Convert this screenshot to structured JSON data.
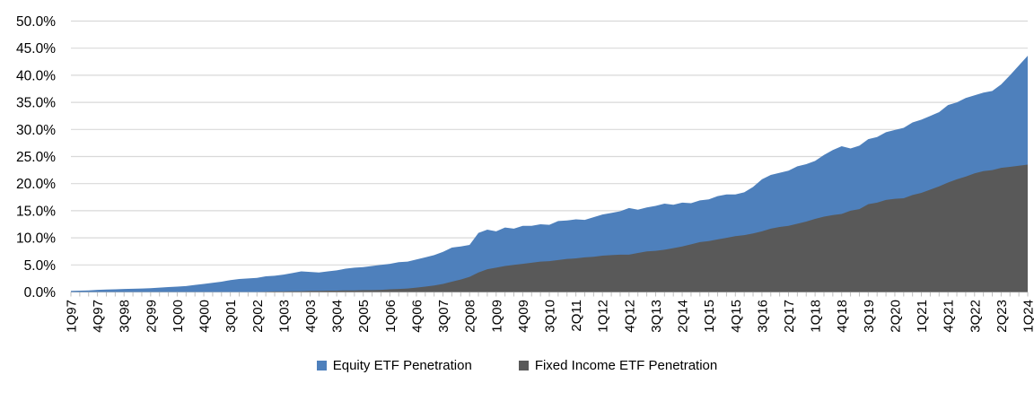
{
  "chart_data": {
    "type": "area",
    "title": "",
    "grid": true,
    "legend_position": "bottom",
    "overlap_mode": "overlaid-not-stacked",
    "y_axis": {
      "min": 0,
      "max": 50,
      "step": 5,
      "tick_labels": [
        "0.0%",
        "5.0%",
        "10.0%",
        "15.0%",
        "20.0%",
        "25.0%",
        "30.0%",
        "35.0%",
        "40.0%",
        "45.0%",
        "50.0%"
      ]
    },
    "x_axis": {
      "points": 109,
      "first_point": "1Q97",
      "last_point": "1Q24",
      "label_every_n_points": 3,
      "tick_labels": [
        "1Q97",
        "4Q97",
        "3Q98",
        "2Q99",
        "1Q00",
        "4Q00",
        "3Q01",
        "2Q02",
        "1Q03",
        "4Q03",
        "3Q04",
        "2Q05",
        "1Q06",
        "4Q06",
        "3Q07",
        "2Q08",
        "1Q09",
        "4Q09",
        "3Q10",
        "2Q11",
        "1Q12",
        "4Q12",
        "3Q13",
        "2Q14",
        "1Q15",
        "4Q15",
        "3Q16",
        "2Q17",
        "1Q18",
        "4Q18",
        "3Q19",
        "2Q20",
        "1Q21",
        "4Q21",
        "3Q22",
        "2Q23",
        "1Q24"
      ]
    },
    "series": [
      {
        "name": "Equity ETF Penetration",
        "color": "#4E80BC",
        "values": [
          0.2,
          0.25,
          0.3,
          0.4,
          0.45,
          0.5,
          0.55,
          0.6,
          0.65,
          0.7,
          0.8,
          0.9,
          1.0,
          1.1,
          1.3,
          1.5,
          1.7,
          1.9,
          2.2,
          2.4,
          2.5,
          2.6,
          2.9,
          3.0,
          3.2,
          3.5,
          3.8,
          3.7,
          3.6,
          3.8,
          4.0,
          4.3,
          4.5,
          4.6,
          4.8,
          5.0,
          5.2,
          5.5,
          5.6,
          6.0,
          6.4,
          6.8,
          7.4,
          8.2,
          8.4,
          8.7,
          10.9,
          11.5,
          11.2,
          11.9,
          11.7,
          12.2,
          12.2,
          12.5,
          12.4,
          13.1,
          13.2,
          13.4,
          13.3,
          13.8,
          14.3,
          14.6,
          14.9,
          15.5,
          15.2,
          15.6,
          15.9,
          16.3,
          16.1,
          16.5,
          16.4,
          16.9,
          17.1,
          17.7,
          18.0,
          18.0,
          18.4,
          19.4,
          20.8,
          21.6,
          22.0,
          22.4,
          23.2,
          23.6,
          24.2,
          25.3,
          26.2,
          26.9,
          26.5,
          27.0,
          28.2,
          28.6,
          29.5,
          29.9,
          30.3,
          31.3,
          31.8,
          32.5,
          33.2,
          34.5,
          35.0,
          35.8,
          36.3,
          36.8,
          37.1,
          38.3,
          40.0,
          41.8,
          43.6
        ]
      },
      {
        "name": "Fixed Income ETF Penetration",
        "color": "#595959",
        "values": [
          0,
          0,
          0,
          0,
          0,
          0,
          0,
          0,
          0,
          0,
          0,
          0,
          0,
          0,
          0,
          0,
          0,
          0,
          0,
          0,
          0,
          0,
          0.05,
          0.1,
          0.1,
          0.15,
          0.15,
          0.2,
          0.2,
          0.25,
          0.25,
          0.3,
          0.3,
          0.35,
          0.35,
          0.4,
          0.5,
          0.55,
          0.65,
          0.8,
          1.0,
          1.2,
          1.5,
          1.9,
          2.3,
          2.8,
          3.6,
          4.2,
          4.5,
          4.8,
          5.0,
          5.2,
          5.4,
          5.6,
          5.7,
          5.9,
          6.1,
          6.2,
          6.4,
          6.5,
          6.7,
          6.8,
          6.9,
          6.9,
          7.2,
          7.5,
          7.6,
          7.8,
          8.1,
          8.4,
          8.8,
          9.2,
          9.4,
          9.7,
          10.0,
          10.3,
          10.5,
          10.8,
          11.2,
          11.7,
          12.0,
          12.2,
          12.6,
          13.0,
          13.5,
          13.9,
          14.2,
          14.4,
          15.0,
          15.3,
          16.2,
          16.5,
          17.0,
          17.2,
          17.3,
          17.9,
          18.3,
          18.9,
          19.5,
          20.2,
          20.8,
          21.3,
          21.9,
          22.3,
          22.5,
          22.9,
          23.1,
          23.3,
          23.5
        ]
      }
    ],
    "colors": {
      "grid": "#D9D9D9",
      "axis": "#BFBFBF",
      "tick": "#BFBFBF",
      "text": "#000000",
      "background": "#FFFFFF"
    }
  }
}
